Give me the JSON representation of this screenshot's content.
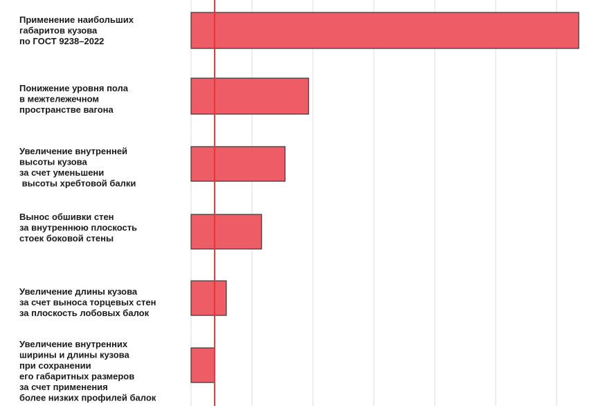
{
  "chart_data": {
    "type": "bar",
    "orientation": "horizontal",
    "title": "",
    "xlabel": "",
    "ylabel": "",
    "categories": [
      [
        "Применение наибольших",
        "габаритов кузова",
        "по ГОСТ 9238–2022"
      ],
      [
        "Понижение уровня пола",
        "в межтележечном",
        "пространстве вагона"
      ],
      [
        "Увеличение внутренней",
        "высоты кузова",
        "за счет уменьшени",
        " высоты хребтовой балки"
      ],
      [
        "Вынос обшивки стен",
        "за внутреннюю плоскость",
        "стоек боковой стены"
      ],
      [
        "Увеличение длины кузова",
        "за счет выноса торцевых стен",
        "за плоскость лобовых балок"
      ],
      [
        "Увеличение внутренних",
        "ширины и длины кузова",
        "при сохранении",
        "его габаритных размеров",
        "за счет применения",
        "более низких профилей балок"
      ]
    ],
    "values": [
      6.6,
      2.0,
      1.6,
      1.2,
      0.6,
      0.4
    ],
    "xlim": [
      0,
      6.6
    ],
    "grid": true,
    "reference_line": {
      "value": 0.4,
      "color": "#e8343b"
    },
    "colors": {
      "bar_fill": "#ee5d66",
      "bar_stroke": "#333333",
      "grid": "#dcdcdc",
      "text": "#1a1a1a"
    }
  }
}
